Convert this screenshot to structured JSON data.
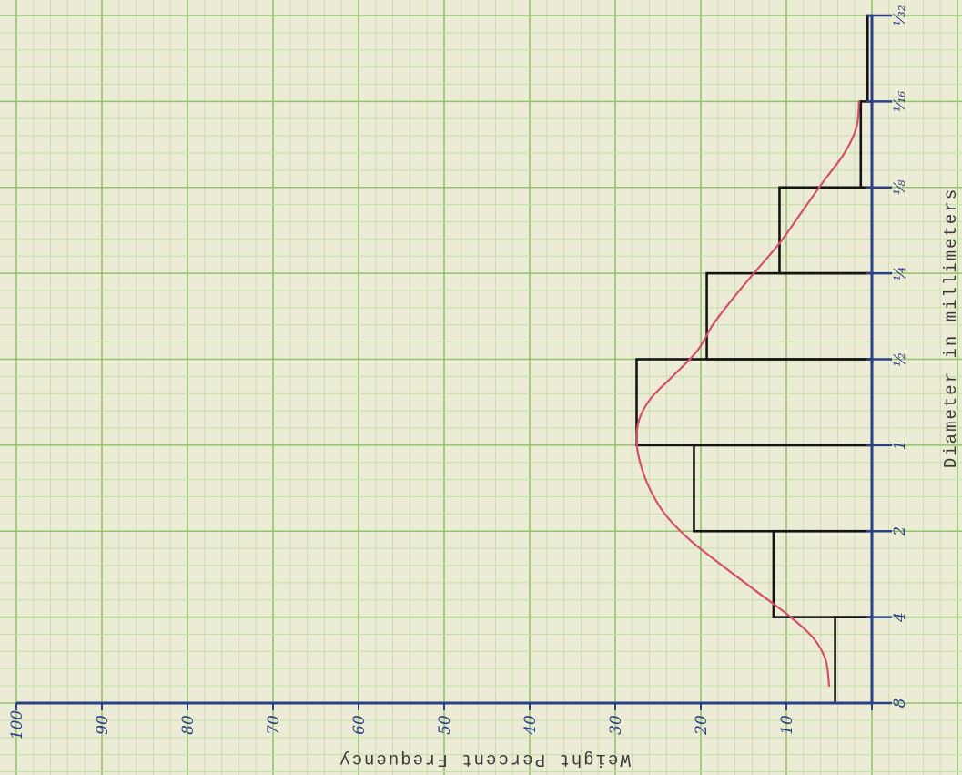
{
  "chart_data": {
    "type": "bar",
    "title": "",
    "xlabel": "Diameter in millimeters",
    "ylabel": "Weight Percent Frequency",
    "categories": [
      "8",
      "4",
      "2",
      "1",
      "1/2",
      "1/4",
      "1/8",
      "1/16",
      "1/32"
    ],
    "category_tick_labels": [
      "8",
      "4",
      "2",
      "1",
      "½",
      "¼",
      "⅛",
      "¹⁄₁₆",
      "¹⁄₃₂"
    ],
    "series": [
      {
        "kind": "histogram",
        "bins": [
          {
            "from": "8",
            "to": "4",
            "value": 4.3
          },
          {
            "from": "4",
            "to": "2",
            "value": 11.5
          },
          {
            "from": "2",
            "to": "1",
            "value": 20.8
          },
          {
            "from": "1",
            "to": "1/2",
            "value": 27.5
          },
          {
            "from": "1/2",
            "to": "1/4",
            "value": 19.3
          },
          {
            "from": "1/4",
            "to": "1/8",
            "value": 10.8
          },
          {
            "from": "1/8",
            "to": "1/16",
            "value": 1.3
          },
          {
            "from": "1/16",
            "to": "1/32",
            "value": 0.5
          }
        ]
      },
      {
        "kind": "frequency-curve",
        "color": "#d4506a",
        "points": [
          [
            0.2,
            5
          ],
          [
            0.5,
            5.4
          ],
          [
            0.75,
            6.8
          ],
          [
            1.0,
            9.5
          ],
          [
            1.3,
            13.5
          ],
          [
            1.6,
            17.5
          ],
          [
            1.9,
            21.3
          ],
          [
            2.2,
            24.2
          ],
          [
            2.5,
            26.0
          ],
          [
            2.8,
            27.1
          ],
          [
            3.05,
            27.5
          ],
          [
            3.3,
            27.2
          ],
          [
            3.55,
            25.8
          ],
          [
            3.8,
            23.3
          ],
          [
            4.1,
            20.4
          ],
          [
            4.4,
            18.6
          ],
          [
            4.7,
            16.3
          ],
          [
            5.0,
            13.8
          ],
          [
            5.35,
            10.8
          ],
          [
            5.7,
            8.3
          ],
          [
            6.05,
            5.8
          ],
          [
            6.4,
            3.2
          ],
          [
            6.7,
            1.8
          ],
          [
            7.0,
            1.5
          ]
        ]
      }
    ],
    "value_axis": {
      "range": [
        0,
        100
      ],
      "ticks": [
        0,
        10,
        20,
        30,
        40,
        50,
        60,
        70,
        80,
        90,
        100
      ],
      "tick_labels": [
        "",
        "10",
        "20",
        "30",
        "40",
        "50",
        "60",
        "70",
        "80",
        "90",
        "100"
      ]
    },
    "orientation": "rotated 90° — category axis vertical on right, value axis horizontal along bottom increasing leftward",
    "grid": true,
    "colors": {
      "grid_major": "#8fc46a",
      "grid_minor": "#c5dea6",
      "axis": "#2a3f86",
      "bars": "#141414",
      "curve": "#d4506a",
      "paper": "#ecebd6"
    }
  }
}
